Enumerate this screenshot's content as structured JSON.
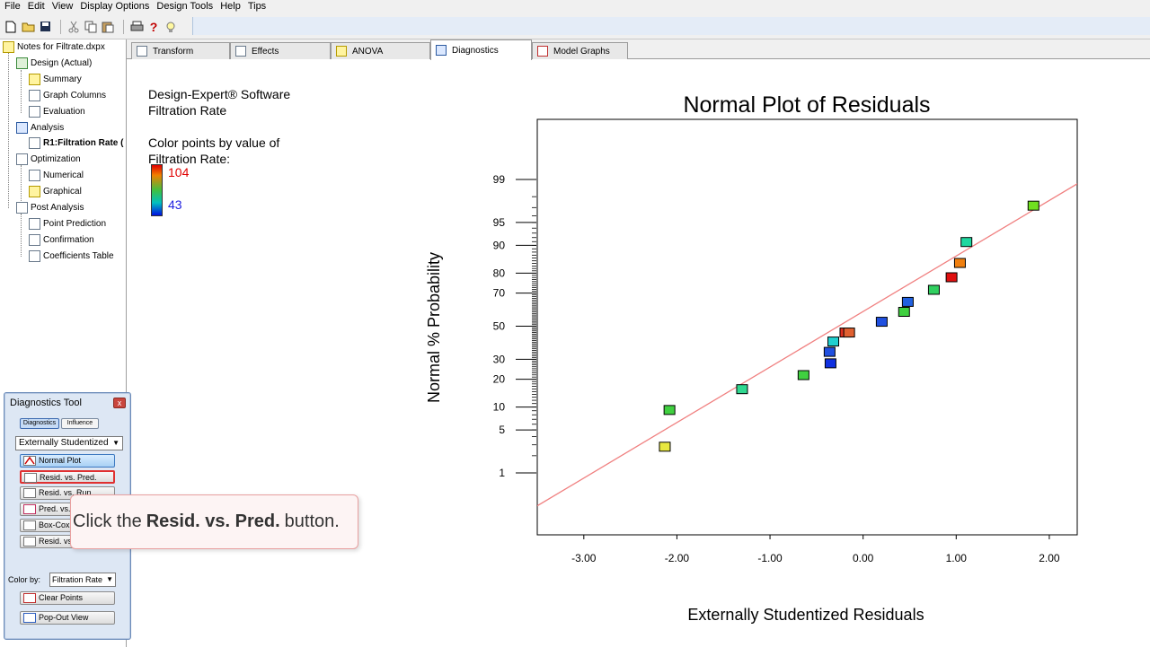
{
  "menu": [
    "File",
    "Edit",
    "View",
    "Display Options",
    "Design Tools",
    "Help",
    "Tips"
  ],
  "toolbar": {
    "icons": [
      "new-file-icon",
      "open-folder-icon",
      "save-icon",
      "cut-icon",
      "copy-icon",
      "paste-icon",
      "print-icon",
      "help-icon",
      "tips-bulb-icon"
    ]
  },
  "tree": {
    "root": "Notes for Filtrate.dxpx",
    "design": "Design (Actual)",
    "summary": "Summary",
    "graph_columns": "Graph Columns",
    "evaluation": "Evaluation",
    "analysis": "Analysis",
    "r1": "R1:Filtration Rate (",
    "optimization": "Optimization",
    "numerical": "Numerical",
    "graphical": "Graphical",
    "post_analysis": "Post Analysis",
    "point_prediction": "Point Prediction",
    "confirmation": "Confirmation",
    "coefficients_table": "Coefficients Table"
  },
  "tabs": [
    "Transform",
    "Effects",
    "ANOVA",
    "Diagnostics",
    "Model Graphs"
  ],
  "active_tab": "Diagnostics",
  "info": {
    "software": "Design-Expert® Software",
    "response": "Filtration Rate",
    "color_label_1": "Color points by value of",
    "color_label_2": "Filtration Rate:",
    "color_max": "104",
    "color_min": "43"
  },
  "chart_data": {
    "type": "scatter",
    "title": "Normal Plot of Residuals",
    "xlabel": "Externally Studentized Residuals",
    "ylabel": "Normal % Probability",
    "xlim": [
      -3.5,
      2.3
    ],
    "x_ticks": [
      "-3.00",
      "-2.00",
      "-1.00",
      "0.00",
      "1.00",
      "2.00"
    ],
    "x_tick_values": [
      -3,
      -2,
      -1,
      0,
      1,
      2
    ],
    "y_ticks": [
      "1",
      "5",
      "10",
      "20",
      "30",
      "50",
      "70",
      "80",
      "90",
      "95",
      "99"
    ],
    "y_tick_values": [
      1,
      5,
      10,
      20,
      30,
      50,
      70,
      80,
      90,
      95,
      99
    ],
    "fit_line": {
      "x": [
        -3.5,
        2.3
      ],
      "y": [
        0.22,
        98.8
      ],
      "color": "#f08080"
    },
    "points": [
      {
        "x": -2.13,
        "y": 2.8,
        "color": "#e8e840"
      },
      {
        "x": -2.08,
        "y": 9.2,
        "color": "#40d040"
      },
      {
        "x": -1.3,
        "y": 15.9,
        "color": "#30d890"
      },
      {
        "x": -0.64,
        "y": 21.9,
        "color": "#40d040"
      },
      {
        "x": -0.35,
        "y": 27.8,
        "color": "#1030e0"
      },
      {
        "x": -0.36,
        "y": 34.2,
        "color": "#2050e0"
      },
      {
        "x": -0.32,
        "y": 40.4,
        "color": "#20d0d0"
      },
      {
        "x": -0.19,
        "y": 46.0,
        "color": "#e03020"
      },
      {
        "x": -0.15,
        "y": 46.0,
        "color": "#e06030"
      },
      {
        "x": 0.2,
        "y": 52.8,
        "color": "#2050e0"
      },
      {
        "x": 0.44,
        "y": 59.0,
        "color": "#40d040"
      },
      {
        "x": 0.48,
        "y": 65.0,
        "color": "#2060e0"
      },
      {
        "x": 0.76,
        "y": 71.8,
        "color": "#30d060"
      },
      {
        "x": 0.95,
        "y": 78.1,
        "color": "#e01010"
      },
      {
        "x": 1.04,
        "y": 84.2,
        "color": "#f08010"
      },
      {
        "x": 1.11,
        "y": 90.9,
        "color": "#20d8a0"
      },
      {
        "x": 1.83,
        "y": 97.2,
        "color": "#70e020"
      }
    ]
  },
  "diagnostics_tool": {
    "title": "Diagnostics Tool",
    "close": "x",
    "tab_diagnostics": "Diagnostics",
    "tab_influence": "Influence",
    "residual_type": "Externally Studentized",
    "buttons": [
      "Normal Plot",
      "Resid. vs. Pred.",
      "Resid. vs. Run",
      "Pred. vs. Actual",
      "Box-Cox",
      "Resid. vs. Factor"
    ],
    "color_by_label": "Color by:",
    "color_by_value": "Filtration Rate",
    "clear_points": "Clear Points",
    "pop_out": "Pop-Out View"
  },
  "callout": {
    "prefix": "Click the",
    "target": "Resid. vs. Pred.",
    "suffix": "button."
  }
}
